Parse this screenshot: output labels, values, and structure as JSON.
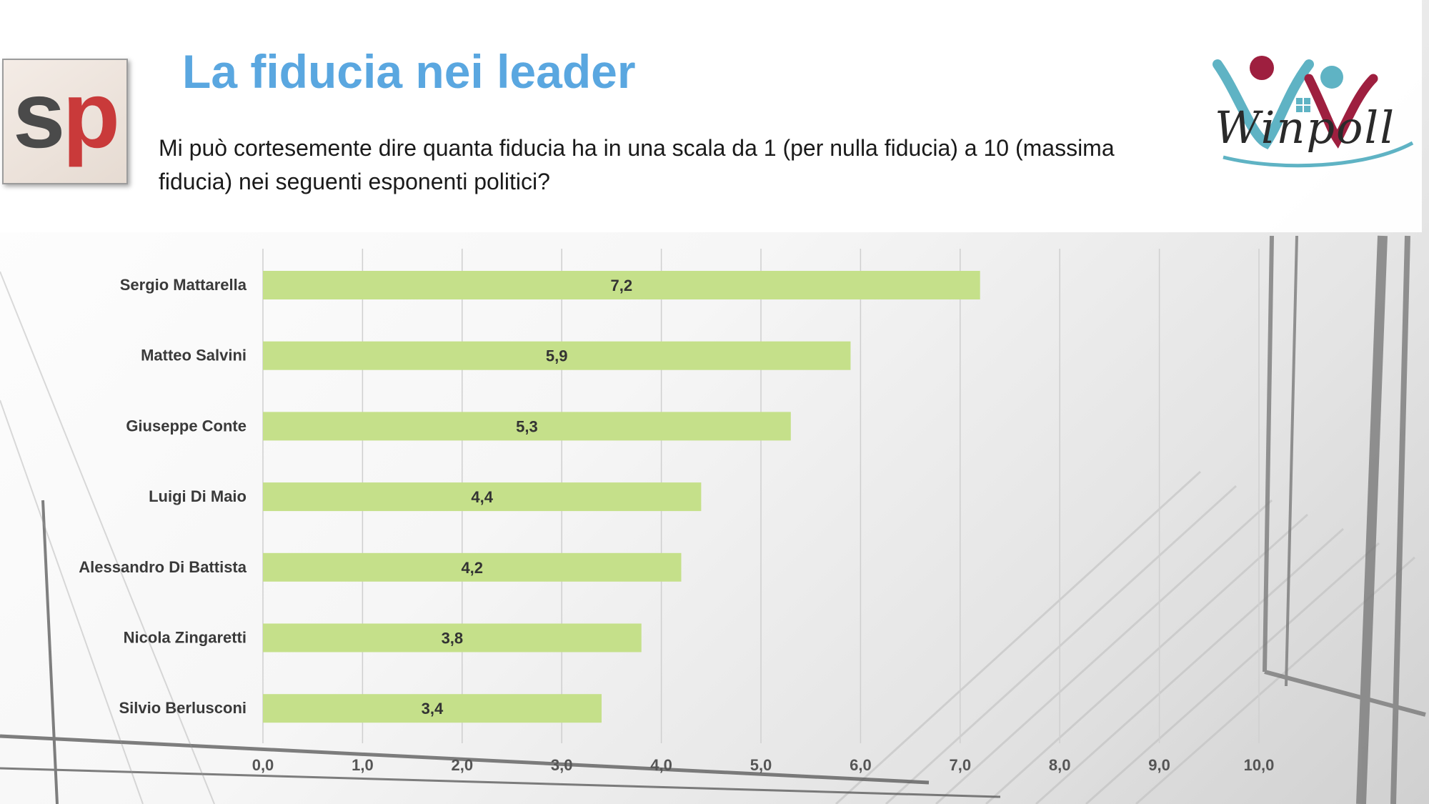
{
  "header": {
    "logo_left": "sp",
    "title": "La fiducia nei leader",
    "question": "Mi può cortesemente dire quanta fiducia ha in una scala da 1 (per nulla fiducia) a 10 (massima fiducia) nei seguenti esponenti politici?",
    "logo_right": "Winpoll"
  },
  "colors": {
    "title": "#5aa7e0",
    "bar": "#c5e08a",
    "logo_red": "#c93a3a",
    "logo_teal": "#5fb3c4",
    "logo_crimson": "#9e1f3f"
  },
  "chart_data": {
    "type": "bar",
    "orientation": "horizontal",
    "categories": [
      "Sergio Mattarella",
      "Matteo Salvini",
      "Giuseppe Conte",
      "Luigi Di Maio",
      "Alessandro Di Battista",
      "Nicola Zingaretti",
      "Silvio Berlusconi"
    ],
    "values": [
      7.2,
      5.9,
      5.3,
      4.4,
      4.2,
      3.8,
      3.4
    ],
    "data_labels": [
      "7,2",
      "5,9",
      "5,3",
      "4,4",
      "4,2",
      "3,8",
      "3,4"
    ],
    "xlim": [
      0,
      10
    ],
    "xticks": [
      "0,0",
      "1,0",
      "2,0",
      "3,0",
      "4,0",
      "5,0",
      "6,0",
      "7,0",
      "8,0",
      "9,0",
      "10,0"
    ],
    "grid": true,
    "legend": "none"
  }
}
